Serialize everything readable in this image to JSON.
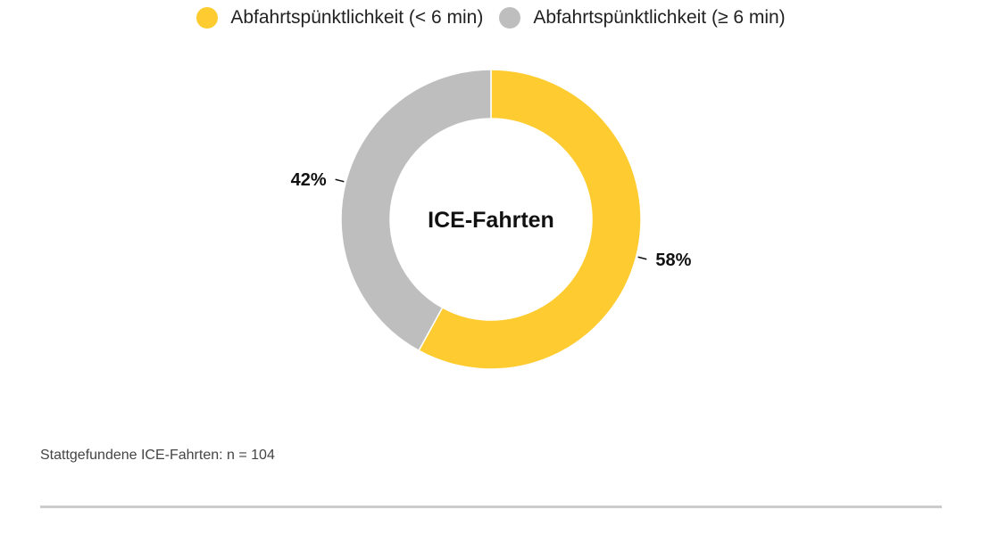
{
  "chart_data": {
    "type": "pie",
    "center_label": "ICE-Fahrten",
    "slices": [
      {
        "name": "Abfahrtspünktlichkeit (< 6 min)",
        "value": 58,
        "label": "58%",
        "color": "#fecc30"
      },
      {
        "name": "Abfahrtspünktlichkeit (≥ 6 min)",
        "value": 42,
        "label": "42%",
        "color": "#bebebe"
      }
    ],
    "legend_position": "top-center",
    "note": "Stattgefundene ICE-Fahrten: n = 104"
  }
}
